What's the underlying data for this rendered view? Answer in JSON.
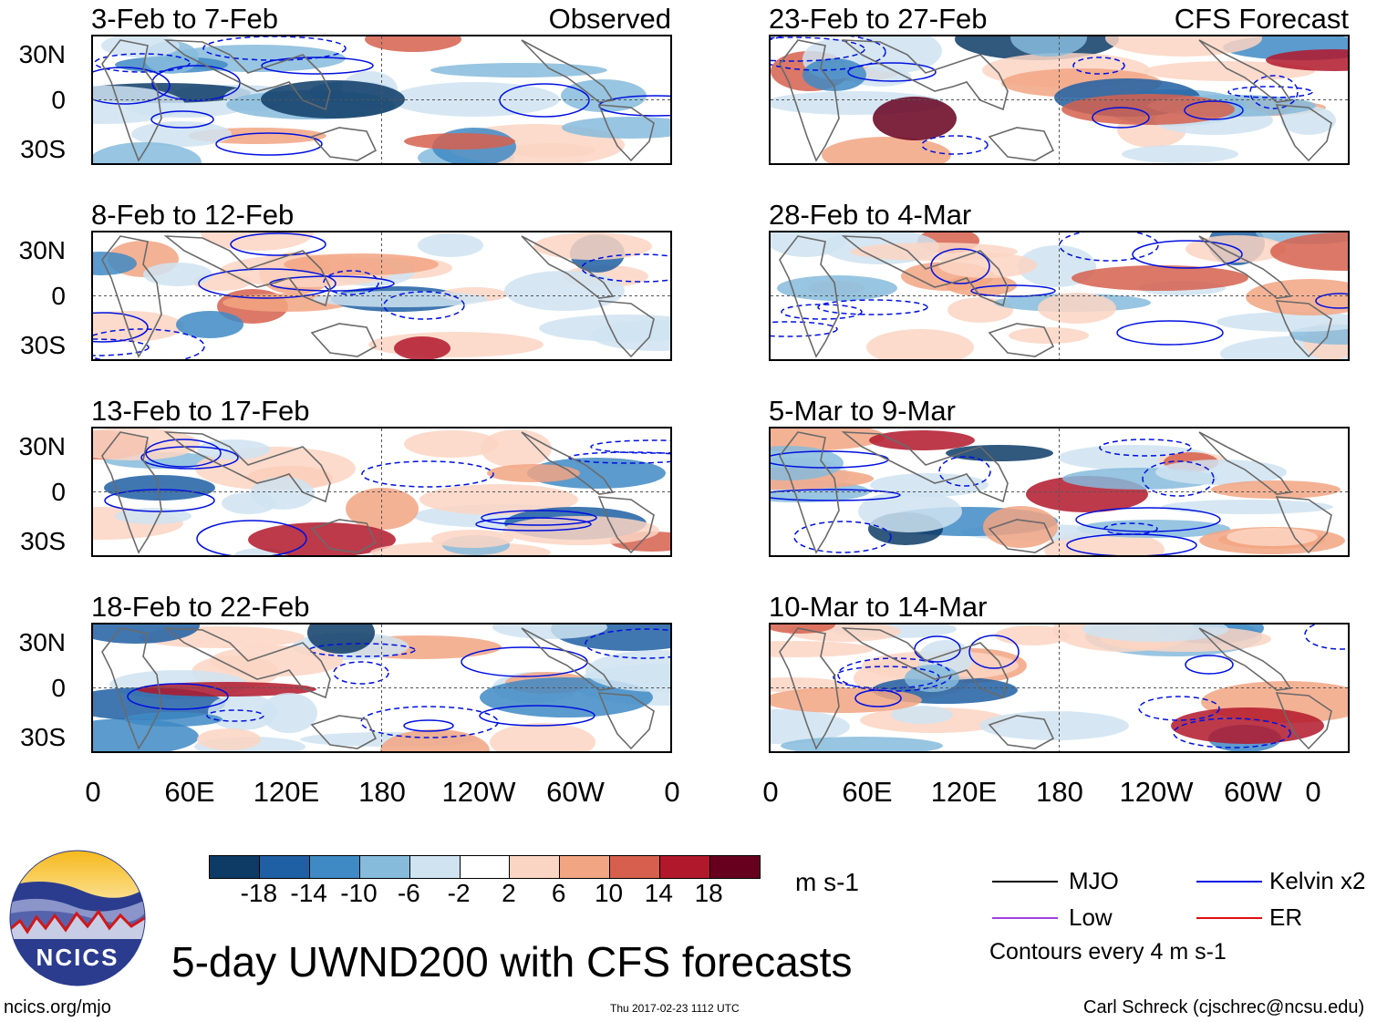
{
  "panels": {
    "left_header": "Observed",
    "right_header": "CFS Forecast",
    "left": [
      {
        "title": "3-Feb to 7-Feb"
      },
      {
        "title": "8-Feb to 12-Feb"
      },
      {
        "title": "13-Feb to 17-Feb"
      },
      {
        "title": "18-Feb to 22-Feb"
      }
    ],
    "right": [
      {
        "title": "23-Feb to 27-Feb"
      },
      {
        "title": "28-Feb to 4-Mar"
      },
      {
        "title": "5-Mar to 9-Mar"
      },
      {
        "title": "10-Mar to 14-Mar"
      }
    ]
  },
  "lat_labels": [
    "30N",
    "0",
    "30S"
  ],
  "lon_labels": [
    "0",
    "60E",
    "120E",
    "180",
    "120W",
    "60W",
    "0"
  ],
  "colorbar": {
    "ticks": [
      "-18",
      "-14",
      "-10",
      "-6",
      "-2",
      "2",
      "6",
      "10",
      "14",
      "18"
    ],
    "units": "m s-1",
    "colors": [
      "#0d3b66",
      "#1f5fa3",
      "#3f8ac4",
      "#86bbdc",
      "#cfe3f1",
      "#ffffff",
      "#fbd5c3",
      "#f2a582",
      "#d6604d",
      "#b2182b",
      "#67001f"
    ]
  },
  "legend": {
    "mjo": "MJO",
    "low": "Low",
    "kelvin": "Kelvin x2",
    "er": "ER",
    "contours_note": "Contours every 4 m s-1",
    "colors": {
      "mjo": "#000000",
      "low": "#a040e0",
      "kelvin": "#0010e0",
      "er": "#e01010"
    }
  },
  "logo_text": "NCICS",
  "main_title": "5-day UWND200 with CFS forecasts",
  "footer": {
    "url": "ncics.org/mjo",
    "timestamp": "Thu 2017-02-23 1112 UTC",
    "author": "Carl Schreck (cjschrec@ncsu.edu)"
  }
}
